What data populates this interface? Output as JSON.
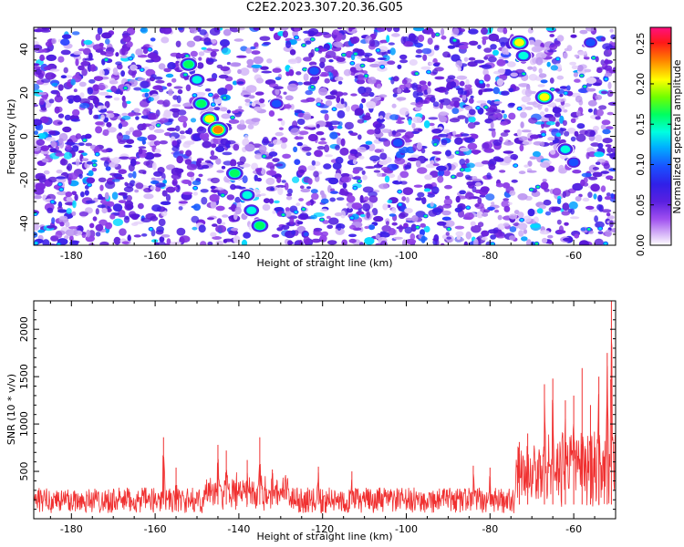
{
  "title": "C2E2.2023.307.20.36.G05",
  "chart_data": [
    {
      "type": "heatmap",
      "xlabel": "Height of straight line (km)",
      "ylabel": "Frequency (Hz)",
      "xlim": [
        -189,
        -50
      ],
      "ylim": [
        -50,
        50
      ],
      "xticks": [
        -180,
        -160,
        -140,
        -120,
        -100,
        -80,
        -60
      ],
      "yticks": [
        -40,
        -20,
        0,
        20,
        40
      ],
      "colorbar": {
        "label": "Normalized spectral amplitude",
        "range": [
          0,
          0.27
        ],
        "ticks": [
          "0.00",
          "0.05",
          "0.10",
          "0.15",
          "0.20",
          "0.25"
        ]
      },
      "colormap": [
        "#ffffff",
        "#c080f0",
        "#7a2ae0",
        "#3a1ae0",
        "#1a50ff",
        "#00c8ff",
        "#00ff90",
        "#60ff00",
        "#ffff00",
        "#ff8000",
        "#ff2020",
        "#ff1080"
      ],
      "hot_spots": [
        {
          "x": -152,
          "y": 33,
          "v": 0.18
        },
        {
          "x": -150,
          "y": 26,
          "v": 0.17
        },
        {
          "x": -149,
          "y": 15,
          "v": 0.2
        },
        {
          "x": -147,
          "y": 8,
          "v": 0.22
        },
        {
          "x": -145,
          "y": 3,
          "v": 0.24
        },
        {
          "x": -141,
          "y": -17,
          "v": 0.18
        },
        {
          "x": -138,
          "y": -27,
          "v": 0.16
        },
        {
          "x": -137,
          "y": -34,
          "v": 0.17
        },
        {
          "x": -135,
          "y": -41,
          "v": 0.2
        },
        {
          "x": -73,
          "y": 43,
          "v": 0.23
        },
        {
          "x": -72,
          "y": 37,
          "v": 0.15
        },
        {
          "x": -67,
          "y": 18,
          "v": 0.21
        },
        {
          "x": -62,
          "y": -6,
          "v": 0.15
        },
        {
          "x": -60,
          "y": -12,
          "v": 0.14
        },
        {
          "x": -131,
          "y": 15,
          "v": 0.14
        },
        {
          "x": -122,
          "y": 30,
          "v": 0.13
        },
        {
          "x": -102,
          "y": -3,
          "v": 0.12
        },
        {
          "x": -56,
          "y": 43,
          "v": 0.13
        }
      ]
    },
    {
      "type": "line",
      "xlabel": "Height of straight line (km)",
      "ylabel": "SNR (10 * v/v)",
      "xlim": [
        -189,
        -50
      ],
      "ylim": [
        0,
        2300
      ],
      "xticks": [
        -180,
        -160,
        -140,
        -120,
        -100,
        -80,
        -60
      ],
      "yticks": [
        500,
        1000,
        1500,
        2000
      ],
      "color": "#f03030",
      "baseline": {
        "x_from": -189,
        "x_to": -74,
        "low": 60,
        "high": 330
      },
      "spikes": [
        {
          "x": -158,
          "y": 860
        },
        {
          "x": -155,
          "y": 540
        },
        {
          "x": -145,
          "y": 780
        },
        {
          "x": -143,
          "y": 720
        },
        {
          "x": -138,
          "y": 620
        },
        {
          "x": -135,
          "y": 860
        },
        {
          "x": -132,
          "y": 520
        },
        {
          "x": -121,
          "y": 550
        },
        {
          "x": -113,
          "y": 500
        },
        {
          "x": -84,
          "y": 560
        },
        {
          "x": -80,
          "y": 540
        },
        {
          "x": -73,
          "y": 810
        },
        {
          "x": -71,
          "y": 900
        },
        {
          "x": -67,
          "y": 1420
        },
        {
          "x": -65,
          "y": 1480
        },
        {
          "x": -62,
          "y": 1250
        },
        {
          "x": -60,
          "y": 1300
        },
        {
          "x": -58,
          "y": 1590
        },
        {
          "x": -56,
          "y": 1200
        },
        {
          "x": -54,
          "y": 1500
        },
        {
          "x": -52,
          "y": 1750
        },
        {
          "x": -51,
          "y": 2300
        }
      ]
    }
  ]
}
